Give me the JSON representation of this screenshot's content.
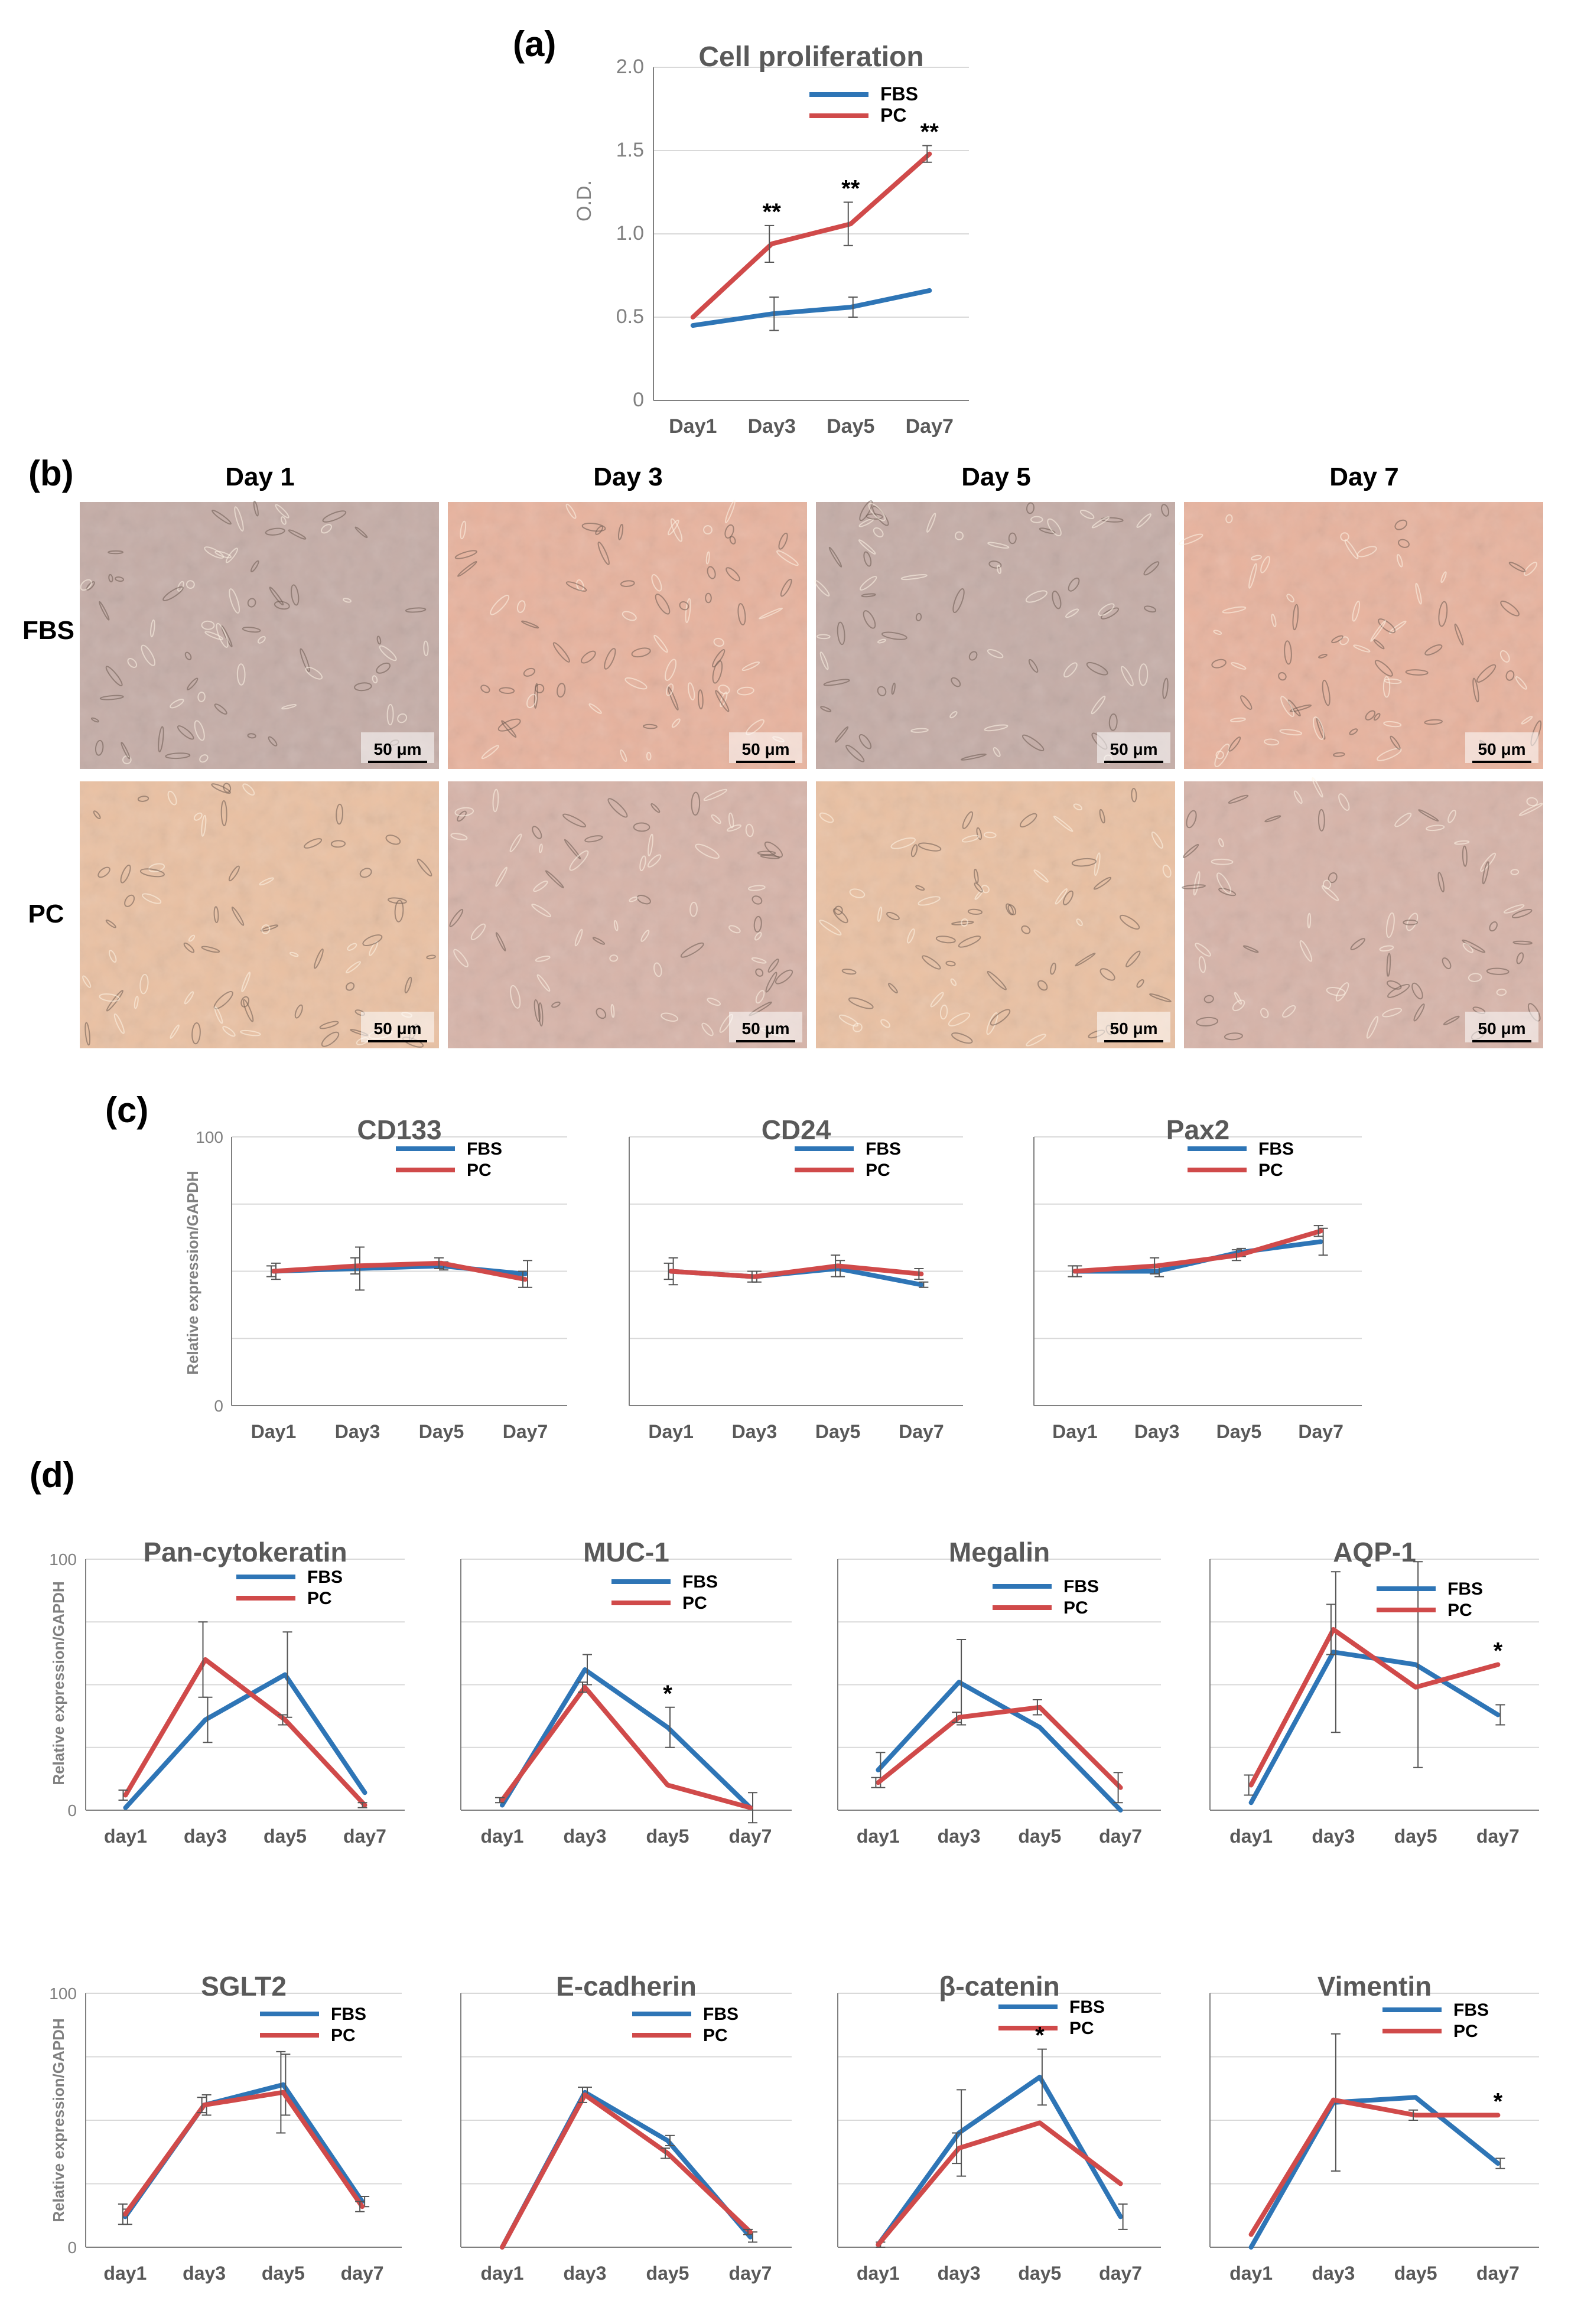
{
  "panel_labels": [
    "(a)",
    "(b)",
    "(c)",
    "(d)"
  ],
  "colors": {
    "FBS": "#2E75B6",
    "PC": "#D04A4A",
    "grid": "#D9D9D9",
    "axis": "#808080",
    "text": "#595959",
    "error": "#555555"
  },
  "photo_grid": {
    "columns": [
      "Day 1",
      "Day 3",
      "Day 5",
      "Day 7"
    ],
    "rows": [
      "FBS",
      "PC"
    ],
    "scale_bar": "50 μm",
    "row_tints": [
      [
        "#C5ADA7",
        "#E8B39E"
      ],
      [
        "#EAC1A3",
        "#D7B4A9"
      ]
    ]
  },
  "chart_data": [
    {
      "id": "a",
      "type": "line",
      "title": "Cell proliferation",
      "ylabel": "O.D.",
      "categories": [
        "Day1",
        "Day3",
        "Day5",
        "Day7"
      ],
      "yticks": [
        "0",
        "0.5",
        "1.0",
        "1.5",
        "2.0"
      ],
      "ylim": [
        0,
        2.0
      ],
      "grid": true,
      "legend": "top-right",
      "series": [
        {
          "name": "FBS",
          "values": [
            0.45,
            0.52,
            0.56,
            0.66
          ],
          "errors": [
            0,
            0.1,
            0.06,
            0
          ]
        },
        {
          "name": "PC",
          "values": [
            0.5,
            0.94,
            1.06,
            1.48
          ],
          "errors": [
            0,
            0.11,
            0.13,
            0.05
          ]
        }
      ],
      "annotations": [
        {
          "x": 1,
          "text": "**"
        },
        {
          "x": 2,
          "text": "**"
        },
        {
          "x": 3,
          "text": "**"
        }
      ]
    },
    {
      "id": "c1",
      "type": "line",
      "title": "CD133",
      "ylabel": "Relative expression/GAPDH",
      "categories": [
        "Day1",
        "Day3",
        "Day5",
        "Day7"
      ],
      "yticks": [
        "0",
        "100"
      ],
      "ylim": [
        0,
        100
      ],
      "grid": true,
      "legend": "top-right",
      "series": [
        {
          "name": "FBS",
          "values": [
            50,
            51,
            52,
            49
          ],
          "errors": [
            3,
            8,
            1.5,
            5
          ]
        },
        {
          "name": "PC",
          "values": [
            50,
            52,
            53,
            47
          ],
          "errors": [
            2,
            3,
            2,
            3
          ]
        }
      ],
      "annotations": []
    },
    {
      "id": "c2",
      "type": "line",
      "title": "CD24",
      "categories": [
        "Day1",
        "Day3",
        "Day5",
        "Day7"
      ],
      "ylim": [
        0,
        100
      ],
      "grid": true,
      "legend": "top-right",
      "series": [
        {
          "name": "FBS",
          "values": [
            50,
            48,
            51,
            45
          ],
          "errors": [
            5,
            2,
            3,
            1
          ]
        },
        {
          "name": "PC",
          "values": [
            50,
            48,
            52,
            49
          ],
          "errors": [
            3,
            2,
            4,
            2
          ]
        }
      ],
      "annotations": []
    },
    {
      "id": "c3",
      "type": "line",
      "title": "Pax2",
      "categories": [
        "Day1",
        "Day3",
        "Day5",
        "Day7"
      ],
      "ylim": [
        0,
        100
      ],
      "grid": true,
      "legend": "top-right",
      "series": [
        {
          "name": "FBS",
          "values": [
            50,
            50,
            57,
            61
          ],
          "errors": [
            2,
            2,
            1.5,
            5
          ]
        },
        {
          "name": "PC",
          "values": [
            50,
            52,
            56,
            65
          ],
          "errors": [
            2,
            3,
            2,
            2
          ]
        }
      ],
      "annotations": []
    },
    {
      "id": "d1",
      "type": "line",
      "title": "Pan-cytokeratin",
      "ylabel": "Relative expression/GAPDH",
      "categories": [
        "day1",
        "day3",
        "day5",
        "day7"
      ],
      "yticks": [
        "0",
        "100"
      ],
      "ylim": [
        0,
        100
      ],
      "grid": true,
      "legend": "top-right",
      "series": [
        {
          "name": "FBS",
          "values": [
            1,
            36,
            54,
            7
          ],
          "errors": [
            0,
            9,
            17,
            0
          ]
        },
        {
          "name": "PC",
          "values": [
            6,
            60,
            36,
            2
          ],
          "errors": [
            2,
            15,
            2,
            1
          ]
        }
      ],
      "annotations": []
    },
    {
      "id": "d2",
      "type": "line",
      "title": "MUC-1",
      "categories": [
        "day1",
        "day3",
        "day5",
        "day7"
      ],
      "ylim": [
        0,
        100
      ],
      "grid": true,
      "legend": "top-right",
      "series": [
        {
          "name": "FBS",
          "values": [
            2,
            56,
            33,
            1
          ],
          "errors": [
            0,
            6,
            8,
            6
          ]
        },
        {
          "name": "PC",
          "values": [
            4,
            49,
            10,
            1
          ],
          "errors": [
            1,
            2,
            0,
            0
          ]
        }
      ],
      "annotations": [
        {
          "x": 2,
          "text": "*"
        }
      ]
    },
    {
      "id": "d3",
      "type": "line",
      "title": "Megalin",
      "categories": [
        "day1",
        "day3",
        "day5",
        "day7"
      ],
      "ylim": [
        0,
        100
      ],
      "grid": true,
      "legend": "top-right",
      "series": [
        {
          "name": "FBS",
          "values": [
            16,
            51,
            33,
            0
          ],
          "errors": [
            7,
            17,
            0,
            0
          ]
        },
        {
          "name": "PC",
          "values": [
            11,
            37,
            41,
            9
          ],
          "errors": [
            2,
            2,
            3,
            6
          ]
        }
      ],
      "annotations": []
    },
    {
      "id": "d4",
      "type": "line",
      "title": "AQP-1",
      "categories": [
        "day1",
        "day3",
        "day5",
        "day7"
      ],
      "ylim": [
        0,
        100
      ],
      "grid": true,
      "legend": "top-right",
      "series": [
        {
          "name": "FBS",
          "values": [
            3,
            63,
            58,
            38
          ],
          "errors": [
            0,
            32,
            41,
            4
          ]
        },
        {
          "name": "PC",
          "values": [
            10,
            72,
            49,
            58
          ],
          "errors": [
            4,
            10,
            0,
            0
          ]
        }
      ],
      "annotations": [
        {
          "x": 3,
          "text": "*"
        }
      ]
    },
    {
      "id": "d5",
      "type": "line",
      "title": "SGLT2",
      "ylabel": "Relative expression/GAPDH",
      "categories": [
        "day1",
        "day3",
        "day5",
        "day7"
      ],
      "yticks": [
        "0",
        "100"
      ],
      "ylim": [
        0,
        100
      ],
      "grid": true,
      "legend": "top-right",
      "series": [
        {
          "name": "FBS",
          "values": [
            12,
            56,
            64,
            18
          ],
          "errors": [
            3,
            4,
            12,
            2
          ]
        },
        {
          "name": "PC",
          "values": [
            13,
            56,
            61,
            16
          ],
          "errors": [
            4,
            3,
            16,
            2
          ]
        }
      ],
      "annotations": []
    },
    {
      "id": "d6",
      "type": "line",
      "title": "E-cadherin",
      "categories": [
        "day1",
        "day3",
        "day5",
        "day7"
      ],
      "ylim": [
        0,
        100
      ],
      "grid": true,
      "legend": "top-right",
      "series": [
        {
          "name": "FBS",
          "values": [
            0,
            61,
            42,
            4
          ],
          "errors": [
            0,
            2,
            2,
            2
          ]
        },
        {
          "name": "PC",
          "values": [
            0,
            60,
            37,
            6
          ],
          "errors": [
            0,
            3,
            2,
            1
          ]
        }
      ],
      "annotations": []
    },
    {
      "id": "d7",
      "type": "line",
      "title": "β-catenin",
      "categories": [
        "day1",
        "day3",
        "day5",
        "day7"
      ],
      "ylim": [
        0,
        100
      ],
      "grid": true,
      "legend": "top-right",
      "series": [
        {
          "name": "FBS",
          "values": [
            1,
            45,
            67,
            12
          ],
          "errors": [
            1,
            17,
            11,
            5
          ]
        },
        {
          "name": "PC",
          "values": [
            1,
            39,
            49,
            25
          ],
          "errors": [
            0,
            6,
            0,
            0
          ]
        }
      ],
      "annotations": [
        {
          "x": 2,
          "text": "*"
        }
      ]
    },
    {
      "id": "d8",
      "type": "line",
      "title": "Vimentin",
      "categories": [
        "day1",
        "day3",
        "day5",
        "day7"
      ],
      "ylim": [
        0,
        100
      ],
      "grid": true,
      "legend": "top-right",
      "series": [
        {
          "name": "FBS",
          "values": [
            0,
            57,
            59,
            33
          ],
          "errors": [
            0,
            27,
            0,
            2
          ]
        },
        {
          "name": "PC",
          "values": [
            5,
            58,
            52,
            52
          ],
          "errors": [
            0,
            0,
            2,
            0
          ]
        }
      ],
      "annotations": [
        {
          "x": 3,
          "text": "*"
        }
      ]
    }
  ]
}
